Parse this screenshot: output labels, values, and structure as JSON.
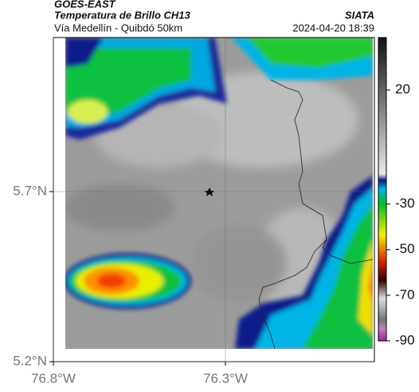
{
  "header": {
    "source": "GOES-EAST",
    "title": "Temperatura de Brillo CH13",
    "org": "SIATA",
    "route": "Vía Medellín - Quibdó 50km",
    "datetime": "2024-04-20 18:39"
  },
  "map": {
    "xlim": [
      -76.8,
      -75.867
    ],
    "ylim": [
      5.2,
      6.153
    ],
    "xticks": [
      {
        "value": -76.8,
        "label": "76.8°W"
      },
      {
        "value": -76.3,
        "label": "76.3°W"
      }
    ],
    "yticks": [
      {
        "value": 5.7,
        "label": "5.7°N"
      },
      {
        "value": 5.2,
        "label": "5.2°N"
      }
    ],
    "grid": true
  },
  "colorbar": {
    "lim": [
      43,
      -90
    ],
    "ticks": [
      20,
      -30,
      -50,
      -70,
      -90
    ]
  }
}
